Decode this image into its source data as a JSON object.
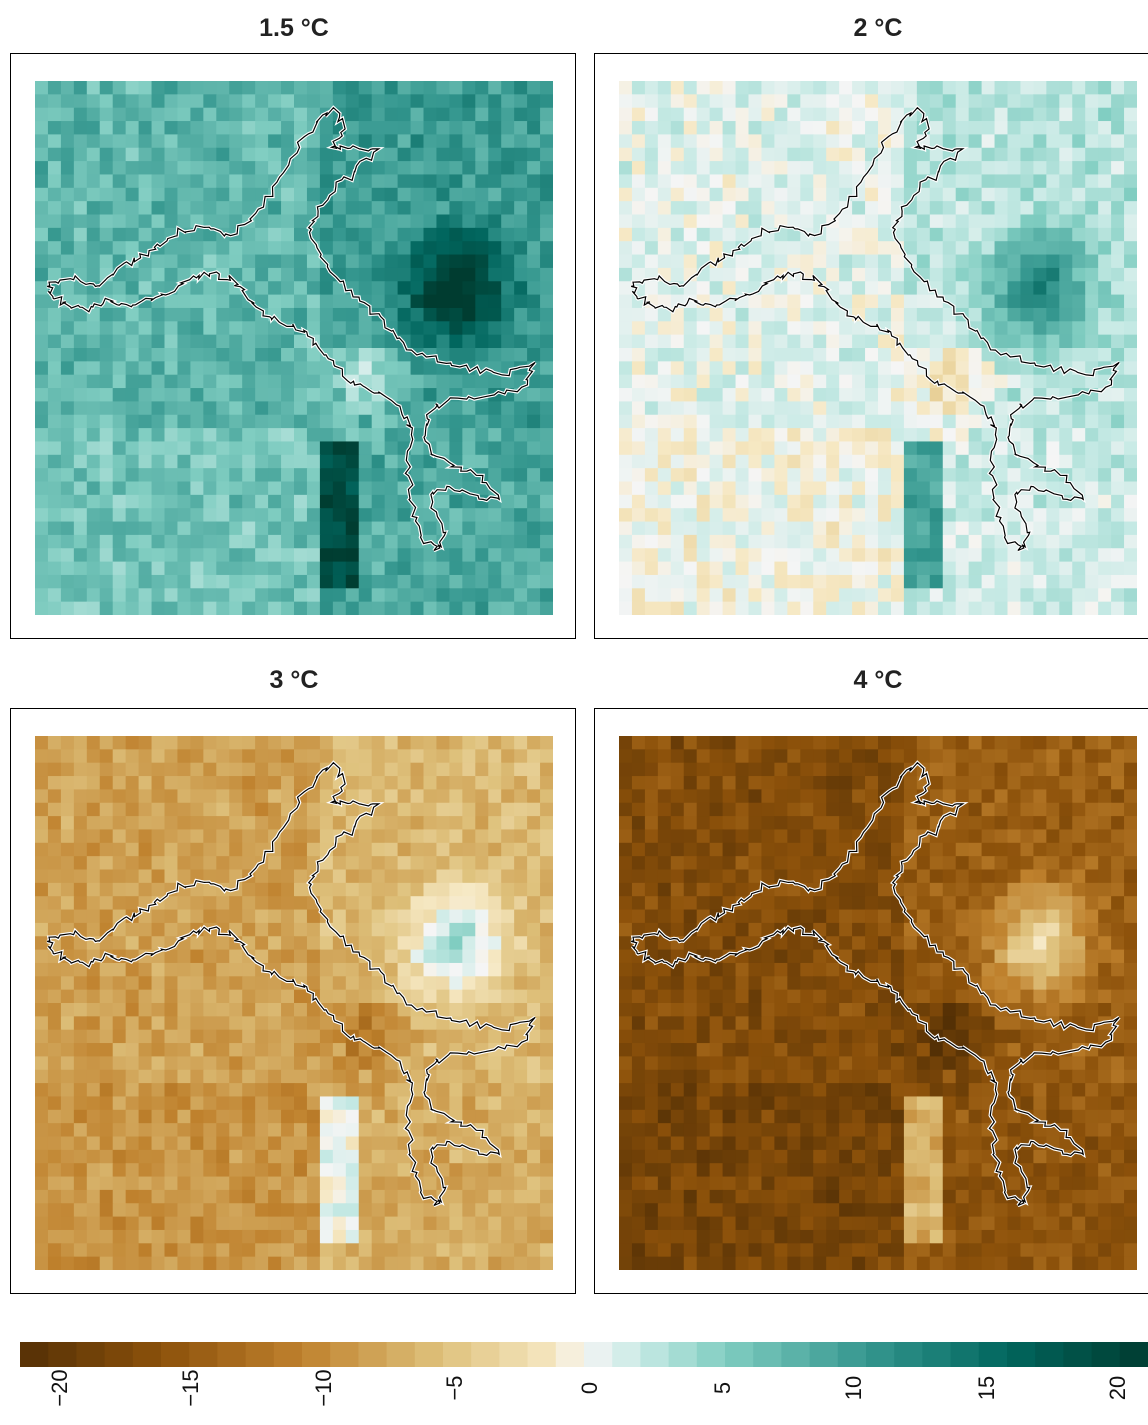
{
  "chart_data": {
    "type": "heatmap",
    "panels": [
      {
        "title": "1.5 °C",
        "mean_value": 8,
        "spread": 4
      },
      {
        "title": "2 °C",
        "mean_value": 1.5,
        "spread": 3
      },
      {
        "title": "3 °C",
        "mean_value": -7,
        "spread": 3
      },
      {
        "title": "4 °C",
        "mean_value": -15,
        "spread": 3.5
      }
    ],
    "colorbar": {
      "range": [
        -20,
        20
      ],
      "ticks": [
        -20,
        -15,
        -10,
        -5,
        0,
        5,
        10,
        15,
        20
      ],
      "tick_labels": [
        "−20",
        "−15",
        "−10",
        "−5",
        "0",
        "5",
        "10",
        "15",
        "20"
      ],
      "negative_color": "#543005",
      "mid_color": "#f5f5f5",
      "positive_color": "#003c30"
    },
    "grid": {
      "rows": 40,
      "cols": 40
    },
    "outline_color": "#000000"
  }
}
